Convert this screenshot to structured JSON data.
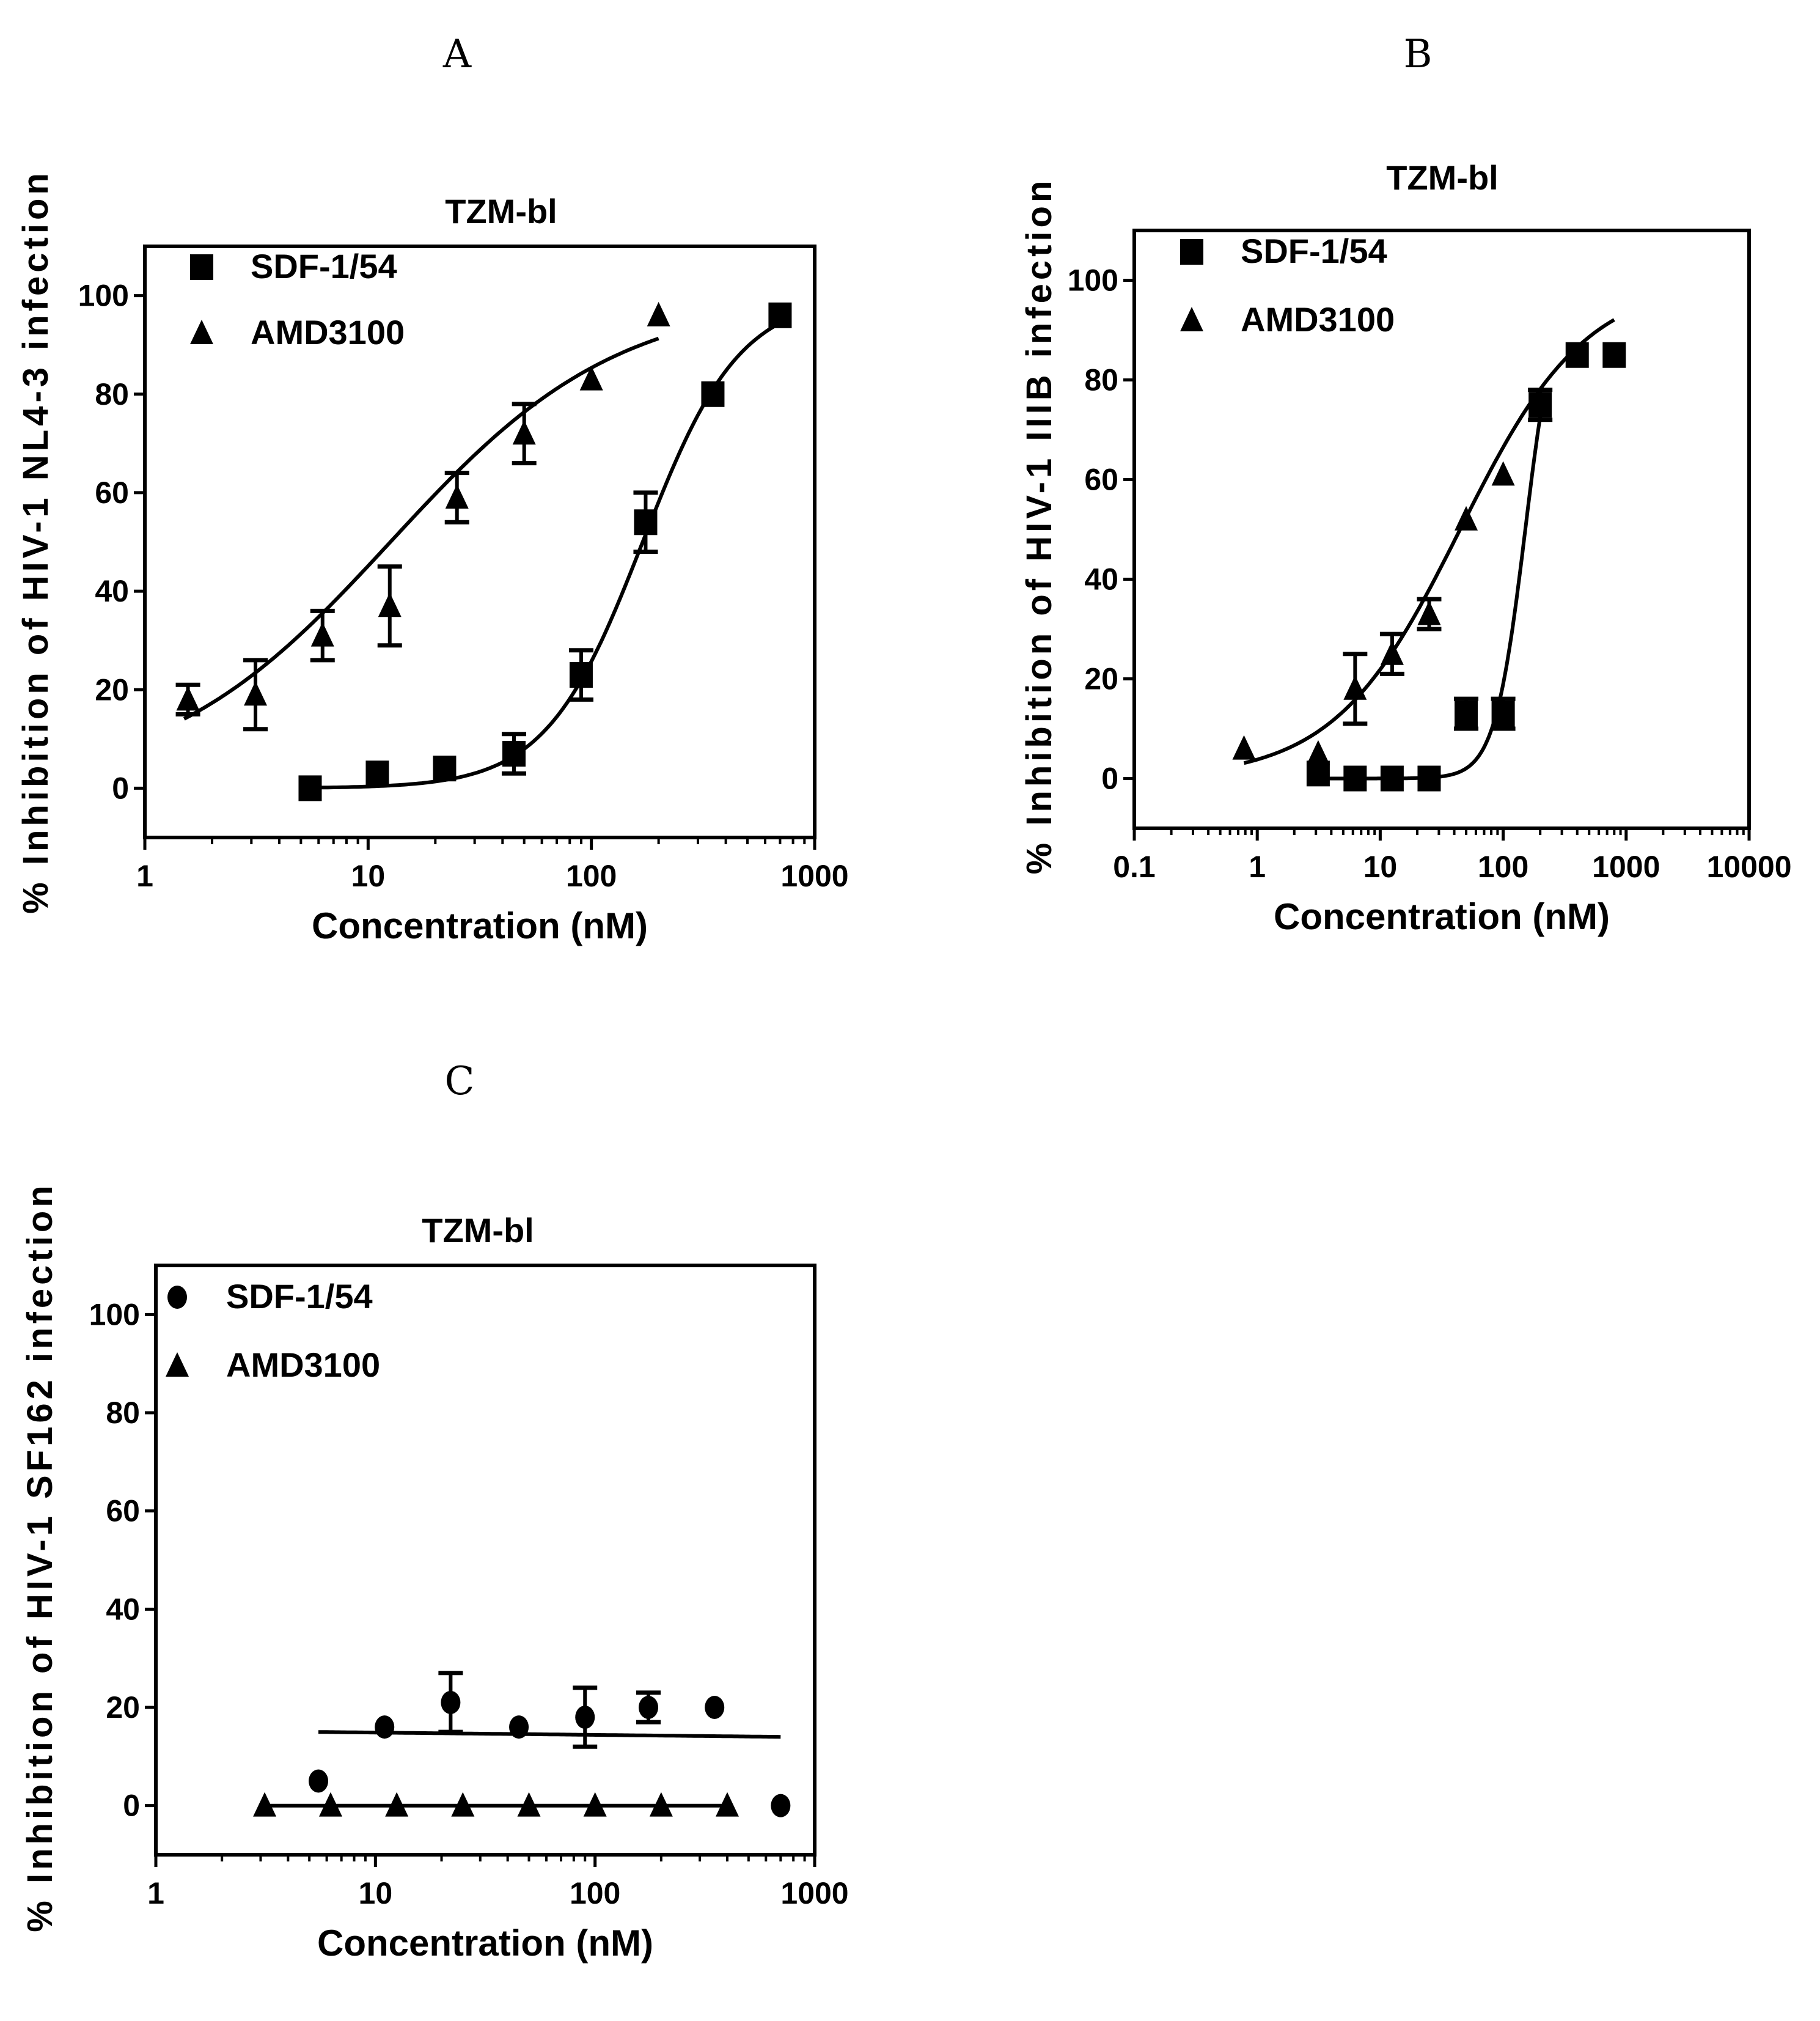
{
  "figure": {
    "panels": [
      "A",
      "B",
      "C"
    ]
  },
  "chart_data": [
    {
      "type": "scatter",
      "panel": "A",
      "title": "TZM-bl",
      "xlabel": "Concentration (nM)",
      "ylabel": "% Inhibition of HIV-1 NL4-3 infection",
      "xscale": "log",
      "xlim": [
        1,
        1000
      ],
      "ylim": [
        -10,
        110
      ],
      "xticks": [
        1,
        10,
        100,
        1000
      ],
      "xtick_labels": [
        "1",
        "10",
        "100",
        "1000"
      ],
      "yticks": [
        0,
        20,
        40,
        60,
        80,
        100
      ],
      "ytick_labels": [
        "0",
        "20",
        "40",
        "60",
        "80",
        "100"
      ],
      "legend_position": "top-left",
      "series": [
        {
          "name": "SDF-1/54",
          "marker": "square",
          "x": [
            5.5,
            11,
            22,
            45,
            90,
            175,
            350,
            700
          ],
          "y": [
            0,
            3,
            4,
            7,
            23,
            54,
            80,
            96
          ],
          "err": [
            0,
            0,
            0,
            4,
            5,
            6,
            0,
            0
          ],
          "fit": {
            "bottom": 0,
            "top": 100,
            "log_ec50": 2.23,
            "hill": 2.0,
            "x_range": [
              5.5,
              700
            ]
          }
        },
        {
          "name": "AMD3100",
          "marker": "triangle",
          "x": [
            1.56,
            3.13,
            6.25,
            12.5,
            25,
            50,
            100,
            200
          ],
          "y": [
            18,
            19,
            31,
            37,
            59,
            72,
            83,
            96
          ],
          "err": [
            3,
            7,
            5,
            8,
            5,
            6,
            0,
            0
          ],
          "fit": {
            "bottom": 0,
            "top": 100,
            "log_ec50": 1.1,
            "hill": 0.85,
            "x_range": [
              1.5,
              200
            ]
          }
        }
      ]
    },
    {
      "type": "scatter",
      "panel": "B",
      "title": "TZM-bl",
      "xlabel": "Concentration (nM)",
      "ylabel": "% Inhibition of HIV-1 IIIB infection",
      "xscale": "log",
      "xlim": [
        0.1,
        10000
      ],
      "ylim": [
        -10,
        110
      ],
      "xticks": [
        0.1,
        1,
        10,
        100,
        1000,
        10000
      ],
      "xtick_labels": [
        "0.1",
        "1",
        "10",
        "100",
        "1000",
        "10000"
      ],
      "yticks": [
        0,
        20,
        40,
        60,
        80,
        100
      ],
      "ytick_labels": [
        "0",
        "20",
        "40",
        "60",
        "80",
        "100"
      ],
      "legend_position": "top-left",
      "series": [
        {
          "name": "SDF-1/54",
          "marker": "square",
          "x": [
            3.13,
            6.25,
            12.5,
            25,
            50,
            100,
            200,
            400,
            800
          ],
          "y": [
            1,
            0,
            0,
            0,
            13,
            13,
            75,
            85,
            85
          ],
          "err": [
            0,
            0,
            0,
            0,
            3,
            3,
            3,
            0,
            0
          ],
          "fit": {
            "bottom": 0,
            "top": 100,
            "log_ec50": 2.18,
            "hill": 3.5,
            "x_range": [
              3.13,
              200
            ]
          }
        },
        {
          "name": "AMD3100",
          "marker": "triangle",
          "x": [
            0.78,
            3.13,
            6.25,
            12.5,
            25,
            50,
            100,
            200
          ],
          "y": [
            6,
            5,
            18,
            25,
            33,
            52,
            61,
            75
          ],
          "err": [
            0,
            0,
            7,
            4,
            3,
            0,
            0,
            0
          ],
          "fit": {
            "bottom": 0,
            "top": 100,
            "log_ec50": 1.65,
            "hill": 0.85,
            "x_range": [
              0.78,
              800
            ]
          }
        }
      ]
    },
    {
      "type": "scatter",
      "panel": "C",
      "title": "TZM-bl",
      "xlabel": "Concentration (nM)",
      "ylabel": "% Inhibition of HIV-1 SF162 infection",
      "xscale": "log",
      "xlim": [
        1,
        1000
      ],
      "ylim": [
        -10,
        110
      ],
      "xticks": [
        1,
        10,
        100,
        1000
      ],
      "xtick_labels": [
        "1",
        "10",
        "100",
        "1000"
      ],
      "yticks": [
        0,
        20,
        40,
        60,
        80,
        100
      ],
      "ytick_labels": [
        "0",
        "20",
        "40",
        "60",
        "80",
        "100"
      ],
      "legend_position": "top-left",
      "series": [
        {
          "name": "SDF-1/54",
          "marker": "circle",
          "x": [
            5.5,
            11,
            22,
            45,
            90,
            175,
            350,
            700
          ],
          "y": [
            5,
            16,
            21,
            16,
            18,
            20,
            20,
            0
          ],
          "err": [
            0,
            0,
            6,
            0,
            6,
            3,
            0,
            0
          ],
          "fit": {
            "type": "linear",
            "y0": 15,
            "y1": 14,
            "x_range": [
              5.5,
              700
            ]
          }
        },
        {
          "name": "AMD3100",
          "marker": "triangle",
          "x": [
            3.13,
            6.25,
            12.5,
            25,
            50,
            100,
            200,
            400
          ],
          "y": [
            0,
            0,
            0,
            0,
            0,
            0,
            0,
            0
          ],
          "err": [
            0,
            0,
            0,
            0,
            0,
            0,
            0,
            0
          ],
          "fit": {
            "type": "linear",
            "y0": 0,
            "y1": 0,
            "x_range": [
              3.13,
              400
            ]
          }
        }
      ]
    }
  ]
}
